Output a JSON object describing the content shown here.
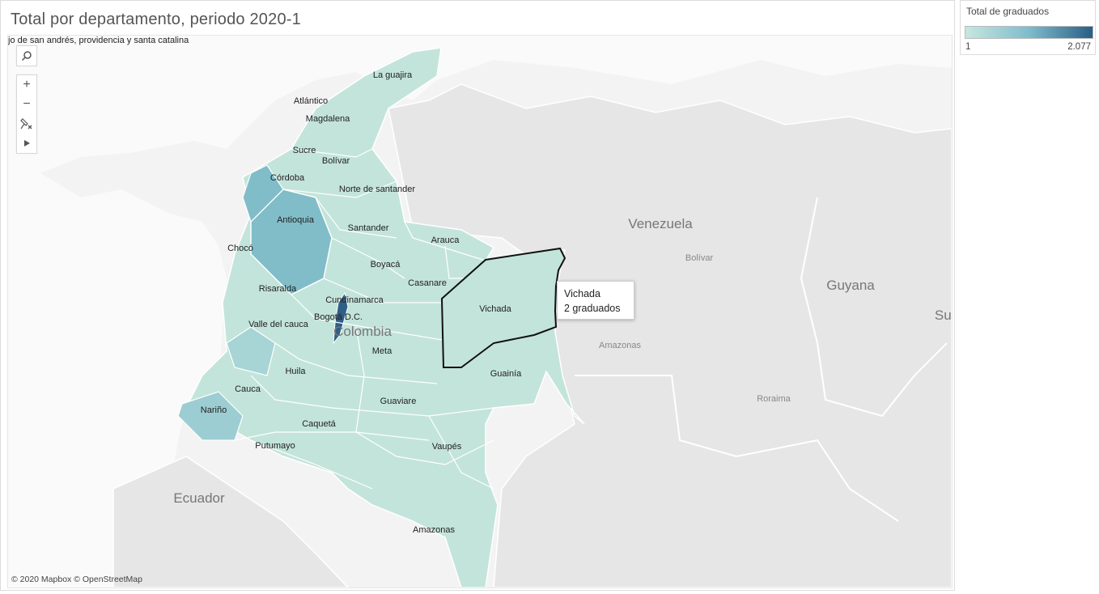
{
  "title": "Total por departamento, periodo 2020-1",
  "clipped_label": "jo de san andrés, providencia y santa catalina",
  "legend": {
    "title": "Total de graduados",
    "min": "1",
    "max": "2.077",
    "color_low": "#c6e7df",
    "color_high": "#2a5e86"
  },
  "tooltip": {
    "line1": "Vichada",
    "line2": "2 graduados"
  },
  "attribution": "© 2020 Mapbox © OpenStreetMap",
  "tools": {
    "search": "search-icon",
    "zoom_in": "+",
    "zoom_out": "−",
    "pin": "pin-icon",
    "expand": "play-icon"
  },
  "map": {
    "departments": [
      "La guajira",
      "Atlántico",
      "Magdalena",
      "Sucre",
      "Bolívar",
      "Córdoba",
      "Norte de santander",
      "Antioquia",
      "Santander",
      "Arauca",
      "Chocó",
      "Boyacá",
      "Casanare",
      "Risaralda",
      "Cundinamarca",
      "Vichada",
      "Bogotá D.C.",
      "Valle del cauca",
      "Meta",
      "Huila",
      "Guainía",
      "Cauca",
      "Guaviare",
      "Nariño",
      "Caquetá",
      "Vaupés",
      "Putumayo",
      "Amazonas"
    ],
    "countries": [
      "Venezuela",
      "Guyana",
      "Suri",
      "Ecuador",
      "Colombia"
    ],
    "places": [
      "Bolívar",
      "Amazonas",
      "Roraima"
    ],
    "selected": "Vichada"
  }
}
